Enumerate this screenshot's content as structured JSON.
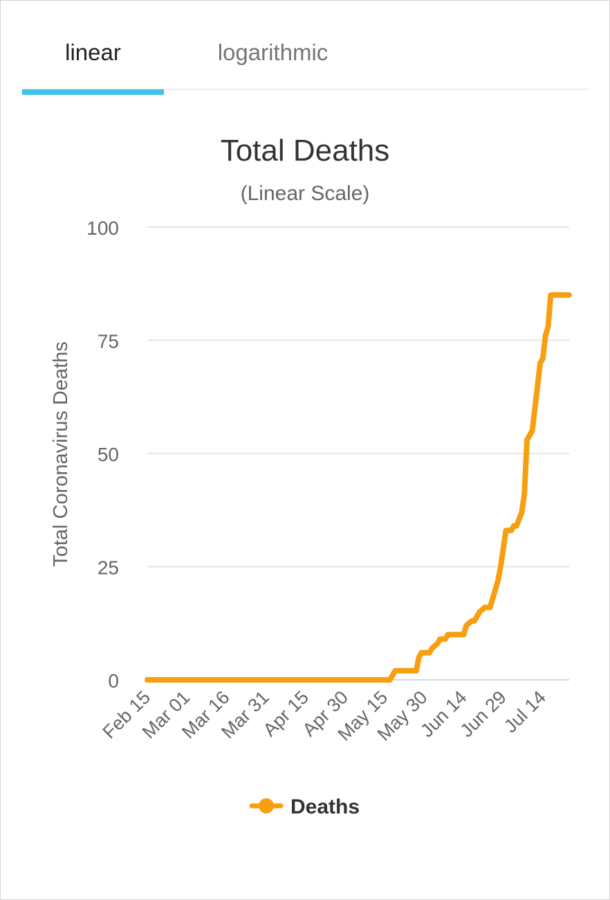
{
  "tabs": [
    {
      "label": "linear",
      "active": true
    },
    {
      "label": "logarithmic",
      "active": false
    }
  ],
  "colors": {
    "accent": "#3fc2ea",
    "series": "#f79f11",
    "grid": "#e6e6e6",
    "text": "#333333",
    "muted": "#666666"
  },
  "chart_data": {
    "type": "line",
    "title": "Total Deaths",
    "subtitle": "(Linear Scale)",
    "ylabel": "Total Coronavirus Deaths",
    "xlabel": "",
    "ylim": [
      0,
      100
    ],
    "yticks": [
      "0",
      "25",
      "50",
      "75",
      "100"
    ],
    "xticks": [
      "Feb 15",
      "Mar 01",
      "Mar 16",
      "Mar 31",
      "Apr 15",
      "Apr 30",
      "May 15",
      "May 30",
      "Jun 14",
      "Jun 29",
      "Jul 14"
    ],
    "grid": true,
    "legend": "bottom",
    "series": [
      {
        "name": "Deaths",
        "x": [
          "Feb 15",
          "May 17",
          "May 18",
          "May 19",
          "May 27",
          "May 28",
          "May 29",
          "Jun 1",
          "Jun 2",
          "Jun 4",
          "Jun 5",
          "Jun 7",
          "Jun 8",
          "Jun 9",
          "Jun 10",
          "Jun 14",
          "Jun 15",
          "Jun 17",
          "Jun 18",
          "Jun 20",
          "Jun 22",
          "Jun 24",
          "Jun 25",
          "Jun 26",
          "Jun 27",
          "Jun 28",
          "Jun 29",
          "Jun 30",
          "Jul 1",
          "Jul 2",
          "Jul 3",
          "Jul 4",
          "Jul 6",
          "Jul 7",
          "Jul 8",
          "Jul 9",
          "Jul 10",
          "Jul 11",
          "Jul 12",
          "Jul 13",
          "Jul 14",
          "Jul 15",
          "Jul 16",
          "Jul 17",
          "Jul 18",
          "Jul 19",
          "Jul 20",
          "Jul 21",
          "Jul 22",
          "Jul 23",
          "Jul 24"
        ],
        "values": [
          0,
          0,
          1,
          2,
          2,
          5,
          6,
          6,
          7,
          8,
          9,
          9,
          10,
          10,
          10,
          10,
          12,
          13,
          13,
          15,
          16,
          16,
          18,
          20,
          22,
          25,
          29,
          33,
          33,
          33,
          34,
          34,
          37,
          41,
          53,
          54,
          55,
          60,
          65,
          70,
          71,
          76,
          78,
          85,
          85,
          85,
          85,
          85,
          85,
          85,
          85
        ]
      }
    ]
  }
}
